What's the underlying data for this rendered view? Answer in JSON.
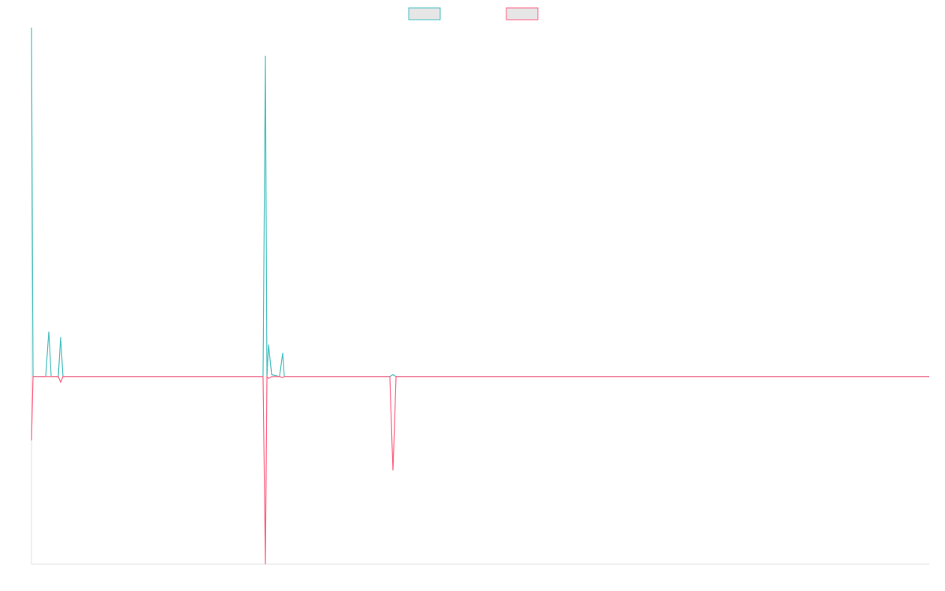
{
  "chart_data": {
    "type": "line",
    "x": [
      0,
      2,
      18,
      22,
      25,
      34,
      37,
      40,
      294,
      297,
      299,
      301,
      305,
      315,
      319,
      321,
      455,
      459,
      463,
      1140
    ],
    "series": [
      {
        "color": "#4bc0c0",
        "values": [
          186,
          0,
          0,
          24,
          0,
          0,
          21,
          0,
          0,
          171,
          0,
          17,
          1,
          0,
          12.6,
          0,
          0,
          1,
          0,
          0
        ]
      },
      {
        "color": "#ff6384",
        "values": [
          -34,
          0,
          0,
          0,
          0,
          0,
          -3,
          0,
          0,
          -100,
          0,
          -1,
          0,
          0,
          -0.5,
          0,
          0,
          -50,
          0,
          0
        ]
      }
    ],
    "xlim": [
      0,
      1140
    ],
    "ylim": [
      -100,
      186
    ],
    "legend": "top"
  }
}
